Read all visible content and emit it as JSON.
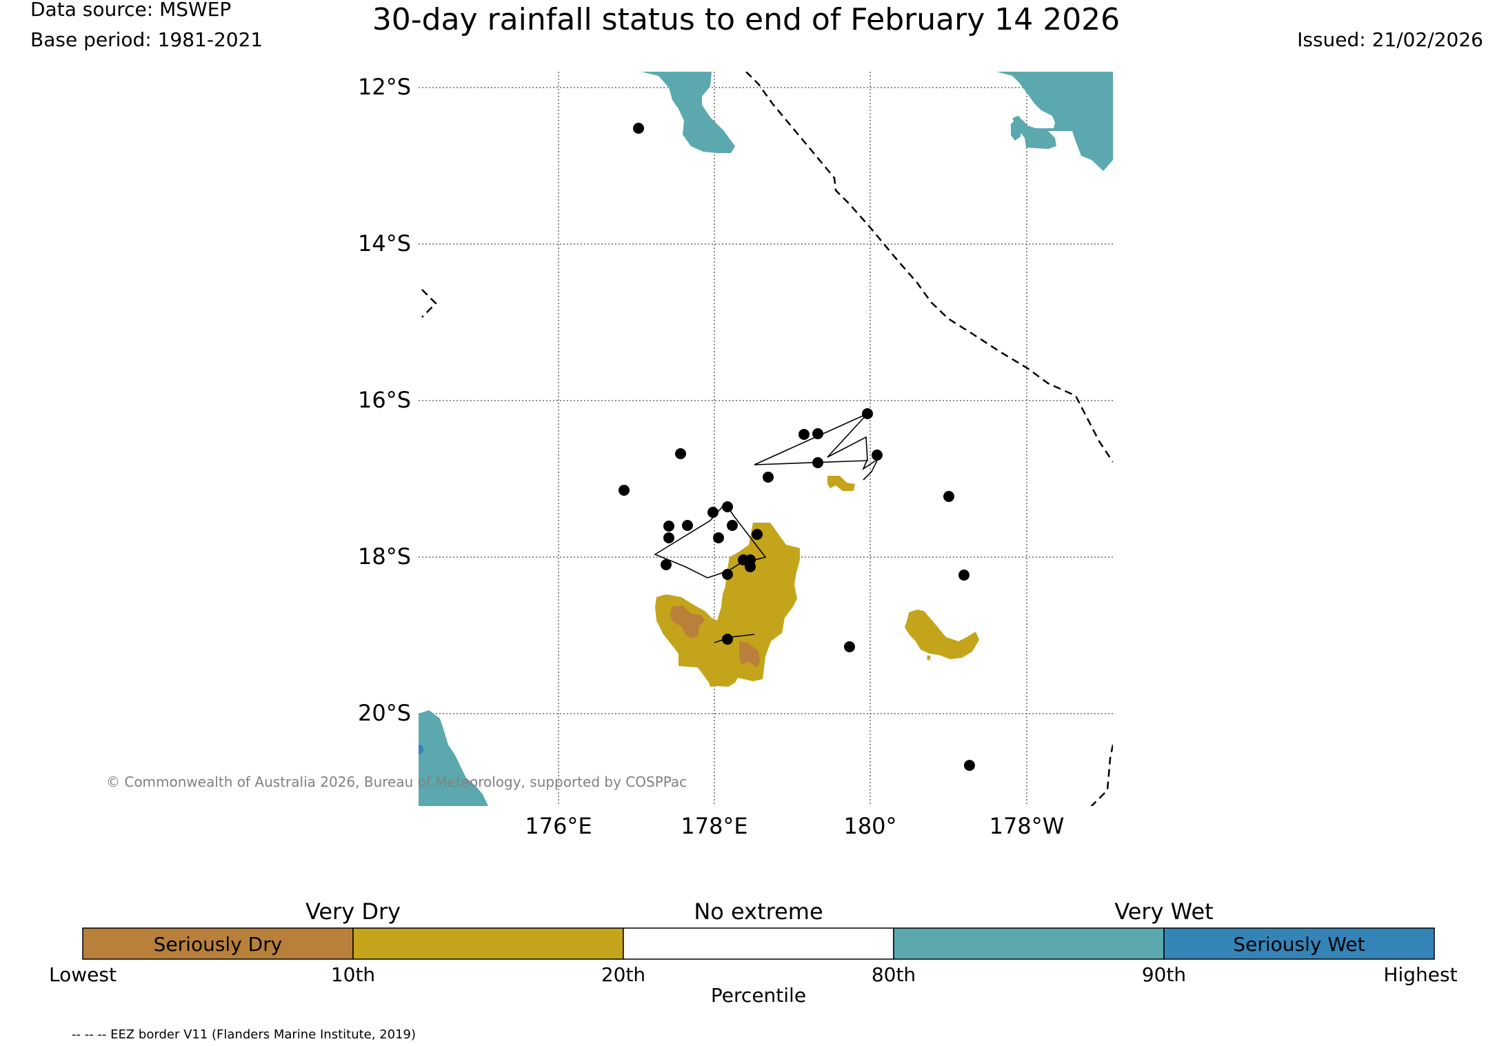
{
  "header": {
    "data_source": "Data source: MSWEP",
    "base_period": "Base period: 1981-2021",
    "title": "30-day rainfall status to end of February 14 2026",
    "issued": "Issued: 21/02/2026"
  },
  "map": {
    "lat_labels": [
      "12°S",
      "14°S",
      "16°S",
      "18°S",
      "20°S"
    ],
    "lon_labels": [
      "176°E",
      "178°E",
      "180°",
      "178°W"
    ],
    "copyright": "© Commonwealth of Australia 2026, Bureau of Meteorology, supported by COSPPac",
    "eez_note": "-- -- -- EEZ border V11 (Flanders Marine Institute, 2019)"
  },
  "legend": {
    "group_labels": [
      "Very Dry",
      "No extreme",
      "Very Wet"
    ],
    "box_labels": {
      "seriously_dry": "Seriously Dry",
      "seriously_wet": "Seriously Wet"
    },
    "tick_labels": [
      "Lowest",
      "10th",
      "20th",
      "80th",
      "90th",
      "Highest"
    ],
    "axis_label": "Percentile",
    "colors": {
      "seriously_dry": "#b8803a",
      "very_dry": "#c4a41a",
      "no_extreme": "#ffffff",
      "very_wet": "#5ba9ae",
      "seriously_wet": "#3584b8"
    }
  }
}
